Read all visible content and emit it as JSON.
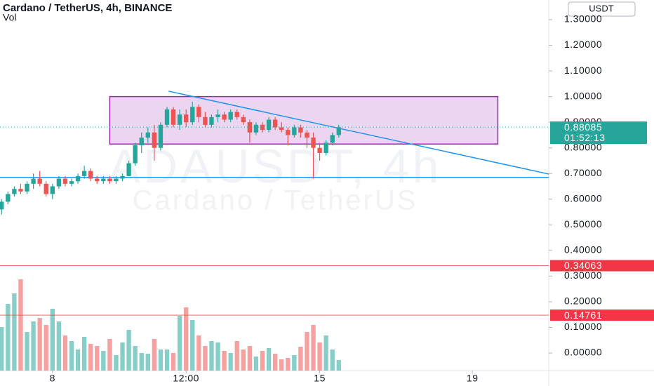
{
  "chart_data": {
    "type": "candlestick",
    "title": "Cardano / TetherUS, 4h, BINANCE",
    "subtitle": "Vol",
    "currency": "USDT",
    "watermark": [
      "ADAUSDT, 4h",
      "Cardano / TetherUS"
    ],
    "up_color": "#26a69a",
    "down_color": "#ef5350",
    "x": [
      -32,
      -28,
      -24,
      -20,
      -16,
      -12,
      -8,
      -4,
      0,
      4,
      8,
      12,
      16,
      20,
      24,
      28,
      32,
      36,
      40,
      44,
      48,
      52,
      56,
      60,
      64,
      68,
      72,
      76,
      80,
      84,
      88,
      92,
      96,
      100,
      104,
      108,
      112,
      116,
      120,
      124,
      128,
      132,
      136,
      140,
      144,
      148,
      152,
      156,
      160,
      164,
      168,
      172,
      176,
      180
    ],
    "ohlc": [
      [
        0.56,
        0.6,
        0.54,
        0.59
      ],
      [
        0.59,
        0.63,
        0.58,
        0.62
      ],
      [
        0.62,
        0.65,
        0.61,
        0.64
      ],
      [
        0.64,
        0.66,
        0.62,
        0.63
      ],
      [
        0.63,
        0.67,
        0.62,
        0.66
      ],
      [
        0.66,
        0.7,
        0.64,
        0.68
      ],
      [
        0.68,
        0.71,
        0.65,
        0.66
      ],
      [
        0.66,
        0.67,
        0.61,
        0.62
      ],
      [
        0.62,
        0.66,
        0.6,
        0.65
      ],
      [
        0.65,
        0.69,
        0.64,
        0.68
      ],
      [
        0.68,
        0.69,
        0.65,
        0.66
      ],
      [
        0.66,
        0.68,
        0.65,
        0.67
      ],
      [
        0.67,
        0.7,
        0.66,
        0.69
      ],
      [
        0.69,
        0.73,
        0.68,
        0.71
      ],
      [
        0.71,
        0.72,
        0.67,
        0.68
      ],
      [
        0.68,
        0.69,
        0.66,
        0.67
      ],
      [
        0.67,
        0.69,
        0.66,
        0.68
      ],
      [
        0.68,
        0.69,
        0.66,
        0.67
      ],
      [
        0.67,
        0.69,
        0.66,
        0.68
      ],
      [
        0.68,
        0.7,
        0.67,
        0.69
      ],
      [
        0.69,
        0.75,
        0.69,
        0.74
      ],
      [
        0.74,
        0.82,
        0.73,
        0.81
      ],
      [
        0.81,
        0.86,
        0.78,
        0.84
      ],
      [
        0.84,
        0.88,
        0.82,
        0.86
      ],
      [
        0.86,
        0.89,
        0.75,
        0.8
      ],
      [
        0.8,
        0.9,
        0.79,
        0.89
      ],
      [
        0.89,
        0.96,
        0.88,
        0.95
      ],
      [
        0.95,
        0.96,
        0.88,
        0.89
      ],
      [
        0.89,
        0.95,
        0.87,
        0.93
      ],
      [
        0.93,
        0.95,
        0.88,
        0.9
      ],
      [
        0.9,
        0.98,
        0.89,
        0.96
      ],
      [
        0.96,
        0.97,
        0.9,
        0.92
      ],
      [
        0.92,
        0.94,
        0.88,
        0.89
      ],
      [
        0.89,
        0.93,
        0.88,
        0.92
      ],
      [
        0.92,
        0.95,
        0.9,
        0.93
      ],
      [
        0.93,
        0.94,
        0.9,
        0.91
      ],
      [
        0.91,
        0.95,
        0.9,
        0.94
      ],
      [
        0.94,
        0.95,
        0.91,
        0.92
      ],
      [
        0.92,
        0.93,
        0.89,
        0.9
      ],
      [
        0.9,
        0.91,
        0.82,
        0.86
      ],
      [
        0.86,
        0.9,
        0.85,
        0.89
      ],
      [
        0.89,
        0.9,
        0.86,
        0.87
      ],
      [
        0.87,
        0.92,
        0.86,
        0.91
      ],
      [
        0.91,
        0.92,
        0.87,
        0.88
      ],
      [
        0.88,
        0.9,
        0.86,
        0.87
      ],
      [
        0.87,
        0.88,
        0.81,
        0.85
      ],
      [
        0.85,
        0.89,
        0.84,
        0.88
      ],
      [
        0.88,
        0.89,
        0.84,
        0.86
      ],
      [
        0.86,
        0.87,
        0.8,
        0.84
      ],
      [
        0.84,
        0.86,
        0.68,
        0.8
      ],
      [
        0.8,
        0.82,
        0.75,
        0.78
      ],
      [
        0.78,
        0.83,
        0.77,
        0.82
      ],
      [
        0.82,
        0.86,
        0.81,
        0.85
      ],
      [
        0.85,
        0.89,
        0.84,
        0.88
      ]
    ],
    "volume": [
      62,
      95,
      110,
      130,
      55,
      70,
      75,
      65,
      88,
      70,
      50,
      42,
      30,
      48,
      38,
      35,
      28,
      45,
      22,
      40,
      58,
      35,
      25,
      24,
      45,
      30,
      30,
      25,
      78,
      90,
      72,
      50,
      35,
      42,
      40,
      28,
      25,
      42,
      30,
      35,
      20,
      28,
      32,
      24,
      16,
      18,
      22,
      34,
      55,
      65,
      40,
      50,
      30,
      15
    ],
    "vlim": [
      0,
      150
    ],
    "xlim": [
      -33,
      312
    ],
    "ylim": [
      0,
      1.3
    ],
    "xticks": [
      {
        "value": 0,
        "label": "8"
      },
      {
        "value": 84,
        "label": "12:00"
      },
      {
        "value": 168,
        "label": "15"
      },
      {
        "value": 264,
        "label": "19"
      }
    ],
    "yticks": [
      {
        "value": 0,
        "label": "0.00000"
      },
      {
        "value": 0.1,
        "label": "0.10000"
      },
      {
        "value": 0.2,
        "label": "0.20000"
      },
      {
        "value": 0.3,
        "label": "0.30000"
      },
      {
        "value": 0.4,
        "label": "0.40000"
      },
      {
        "value": 0.5,
        "label": "0.50000"
      },
      {
        "value": 0.6,
        "label": "0.60000"
      },
      {
        "value": 0.7,
        "label": "0.70000"
      },
      {
        "value": 0.8,
        "label": "0.80000"
      },
      {
        "value": 0.9,
        "label": "0.90000"
      },
      {
        "value": 1,
        "label": "1.00000"
      },
      {
        "value": 1.1,
        "label": "1.10000"
      },
      {
        "value": 1.2,
        "label": "1.20000"
      },
      {
        "value": 1.3,
        "label": "1.30000"
      }
    ],
    "last_price": {
      "value": 0.88085,
      "label": "0.88085",
      "countdown": "01:52:13"
    },
    "price_lines": [
      {
        "value": 0.34063,
        "label": "0.34063"
      },
      {
        "value": 0.14761,
        "label": "0.14761"
      }
    ],
    "rectangle": {
      "x": [
        36,
        280
      ],
      "y": [
        0.815,
        1.0
      ]
    },
    "trend_line": {
      "x": [
        73,
        312
      ],
      "y": [
        1.021,
        0.698
      ]
    },
    "support_line": 0.685
  }
}
